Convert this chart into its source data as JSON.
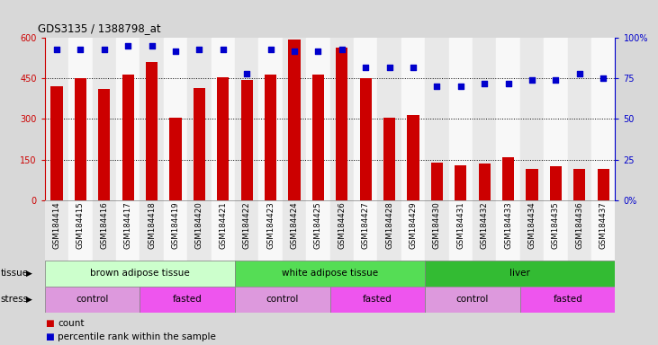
{
  "title": "GDS3135 / 1388798_at",
  "samples": [
    "GSM184414",
    "GSM184415",
    "GSM184416",
    "GSM184417",
    "GSM184418",
    "GSM184419",
    "GSM184420",
    "GSM184421",
    "GSM184422",
    "GSM184423",
    "GSM184424",
    "GSM184425",
    "GSM184426",
    "GSM184427",
    "GSM184428",
    "GSM184429",
    "GSM184430",
    "GSM184431",
    "GSM184432",
    "GSM184433",
    "GSM184434",
    "GSM184435",
    "GSM184436",
    "GSM184437"
  ],
  "counts": [
    420,
    450,
    410,
    465,
    510,
    305,
    415,
    455,
    445,
    465,
    595,
    465,
    565,
    450,
    305,
    315,
    140,
    130,
    135,
    160,
    115,
    125,
    115,
    115
  ],
  "percentiles": [
    93,
    93,
    93,
    95,
    95,
    92,
    93,
    93,
    78,
    93,
    92,
    92,
    93,
    82,
    82,
    82,
    70,
    70,
    72,
    72,
    74,
    74,
    78,
    75
  ],
  "bar_color": "#cc0000",
  "dot_color": "#0000cc",
  "ylim_left": [
    0,
    600
  ],
  "ylim_right": [
    0,
    100
  ],
  "yticks_left": [
    0,
    150,
    300,
    450,
    600
  ],
  "yticks_right": [
    0,
    25,
    50,
    75,
    100
  ],
  "ytick_labels_right": [
    "0%",
    "25",
    "50",
    "75",
    "100%"
  ],
  "grid_values": [
    150,
    300,
    450
  ],
  "tissue_groups": [
    {
      "label": "brown adipose tissue",
      "start": 0,
      "end": 8,
      "color": "#ccffcc"
    },
    {
      "label": "white adipose tissue",
      "start": 8,
      "end": 16,
      "color": "#55dd55"
    },
    {
      "label": "liver",
      "start": 16,
      "end": 24,
      "color": "#33bb33"
    }
  ],
  "stress_groups": [
    {
      "label": "control",
      "start": 0,
      "end": 4,
      "color": "#dd99dd"
    },
    {
      "label": "fasted",
      "start": 4,
      "end": 8,
      "color": "#ee55ee"
    },
    {
      "label": "control",
      "start": 8,
      "end": 12,
      "color": "#dd99dd"
    },
    {
      "label": "fasted",
      "start": 12,
      "end": 16,
      "color": "#ee55ee"
    },
    {
      "label": "control",
      "start": 16,
      "end": 20,
      "color": "#dd99dd"
    },
    {
      "label": "fasted",
      "start": 20,
      "end": 24,
      "color": "#ee55ee"
    }
  ],
  "legend_count_color": "#cc0000",
  "legend_pct_color": "#0000cc",
  "bg_color": "#d8d8d8",
  "plot_bg_color": "#ffffff",
  "col_bg_even": "#e8e8e8",
  "col_bg_odd": "#f8f8f8"
}
